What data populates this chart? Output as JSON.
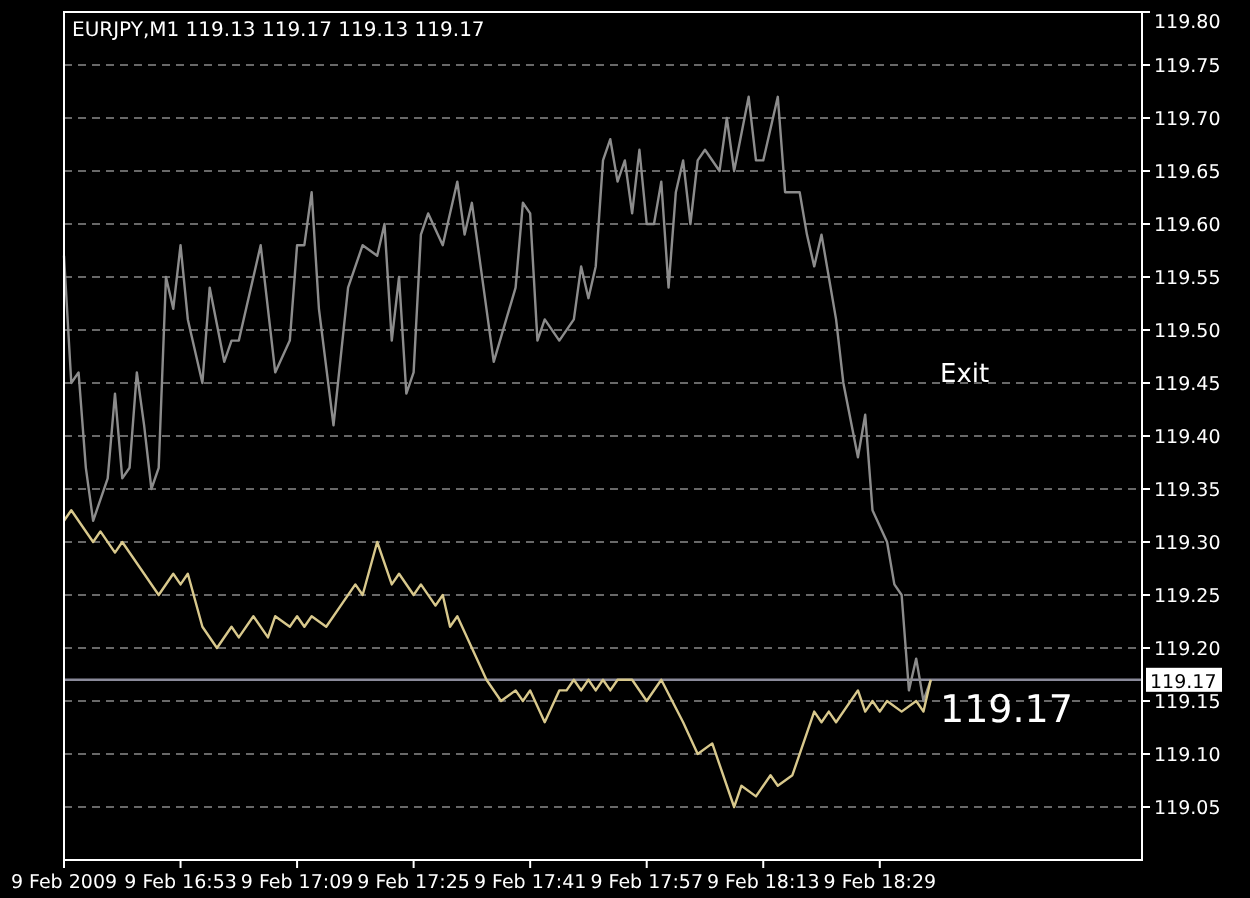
{
  "chart_data": {
    "type": "line",
    "title": "EURJPY,M1  119.13 119.17 119.13 119.17",
    "xlim": [
      "2009-02-09T16:37",
      "2009-02-09T19:05"
    ],
    "xticks": [
      {
        "value": "2009-02-09T16:37",
        "label": "9 Feb 2009"
      },
      {
        "value": "2009-02-09T16:53",
        "label": "9 Feb 16:53"
      },
      {
        "value": "2009-02-09T17:09",
        "label": "9 Feb 17:09"
      },
      {
        "value": "2009-02-09T17:25",
        "label": "9 Feb 17:25"
      },
      {
        "value": "2009-02-09T17:41",
        "label": "9 Feb 17:41"
      },
      {
        "value": "2009-02-09T17:57",
        "label": "9 Feb 17:57"
      },
      {
        "value": "2009-02-09T18:13",
        "label": "9 Feb 18:13"
      },
      {
        "value": "2009-02-09T18:29",
        "label": "9 Feb 18:29"
      }
    ],
    "ylim": [
      119.0,
      119.8
    ],
    "yticks": [
      119.05,
      {
        "value": 119.1,
        "label": "119.10"
      },
      119.15,
      {
        "value": 119.2,
        "label": "119.20"
      },
      119.25,
      {
        "value": 119.3,
        "label": "119.30"
      },
      119.35,
      {
        "value": 119.4,
        "label": "119.40"
      },
      119.45,
      {
        "value": 119.5,
        "label": "119.50"
      },
      119.55,
      {
        "value": 119.6,
        "label": "119.60"
      },
      119.65,
      {
        "value": 119.7,
        "label": "119.70"
      },
      119.75,
      {
        "value": 119.8,
        "label": "119.80"
      }
    ],
    "grid": "y",
    "line_style": "solid",
    "marker": "none",
    "ref_lines": [
      {
        "axis": "y",
        "value": 119.17,
        "label": "119.17",
        "color": "#8a8a9a",
        "line_style": "solid"
      }
    ],
    "annotations": [
      "Exit"
    ],
    "series": [
      {
        "color": "#8c8c8c",
        "x": [
          "2009-02-09T16:37",
          "2009-02-09T16:38",
          "2009-02-09T16:39",
          "2009-02-09T16:40",
          "2009-02-09T16:41",
          "2009-02-09T16:43",
          "2009-02-09T16:44",
          "2009-02-09T16:45",
          "2009-02-09T16:46",
          "2009-02-09T16:47",
          "2009-02-09T16:48",
          "2009-02-09T16:49",
          "2009-02-09T16:50",
          "2009-02-09T16:51",
          "2009-02-09T16:52",
          "2009-02-09T16:53",
          "2009-02-09T16:54",
          "2009-02-09T16:56",
          "2009-02-09T16:57",
          "2009-02-09T16:59",
          "2009-02-09T17:00",
          "2009-02-09T17:01",
          "2009-02-09T17:04",
          "2009-02-09T17:06",
          "2009-02-09T17:08",
          "2009-02-09T17:09",
          "2009-02-09T17:10",
          "2009-02-09T17:11",
          "2009-02-09T17:12",
          "2009-02-09T17:14",
          "2009-02-09T17:16",
          "2009-02-09T17:18",
          "2009-02-09T17:20",
          "2009-02-09T17:21",
          "2009-02-09T17:22",
          "2009-02-09T17:23",
          "2009-02-09T17:24",
          "2009-02-09T17:25",
          "2009-02-09T17:26",
          "2009-02-09T17:27",
          "2009-02-09T17:29",
          "2009-02-09T17:31",
          "2009-02-09T17:32",
          "2009-02-09T17:33",
          "2009-02-09T17:36",
          "2009-02-09T17:39",
          "2009-02-09T17:40",
          "2009-02-09T17:41",
          "2009-02-09T17:42",
          "2009-02-09T17:43",
          "2009-02-09T17:45",
          "2009-02-09T17:47",
          "2009-02-09T17:48",
          "2009-02-09T17:49",
          "2009-02-09T17:50",
          "2009-02-09T17:51",
          "2009-02-09T17:52",
          "2009-02-09T17:53",
          "2009-02-09T17:54",
          "2009-02-09T17:55",
          "2009-02-09T17:56",
          "2009-02-09T17:57",
          "2009-02-09T17:58",
          "2009-02-09T17:59",
          "2009-02-09T18:00",
          "2009-02-09T18:01",
          "2009-02-09T18:02",
          "2009-02-09T18:03",
          "2009-02-09T18:04",
          "2009-02-09T18:05",
          "2009-02-09T18:07",
          "2009-02-09T18:08",
          "2009-02-09T18:09",
          "2009-02-09T18:11",
          "2009-02-09T18:12",
          "2009-02-09T18:13",
          "2009-02-09T18:15",
          "2009-02-09T18:16",
          "2009-02-09T18:18",
          "2009-02-09T18:19",
          "2009-02-09T18:20",
          "2009-02-09T18:21",
          "2009-02-09T18:22",
          "2009-02-09T18:23",
          "2009-02-09T18:24",
          "2009-02-09T18:26",
          "2009-02-09T18:27",
          "2009-02-09T18:28",
          "2009-02-09T18:30",
          "2009-02-09T18:31",
          "2009-02-09T18:32",
          "2009-02-09T18:33",
          "2009-02-09T18:34",
          "2009-02-09T18:35",
          "2009-02-09T18:36"
        ],
        "values": [
          119.57,
          119.45,
          119.46,
          119.37,
          119.32,
          119.36,
          119.44,
          119.36,
          119.37,
          119.46,
          119.41,
          119.35,
          119.37,
          119.55,
          119.52,
          119.58,
          119.51,
          119.45,
          119.54,
          119.47,
          119.49,
          119.49,
          119.58,
          119.46,
          119.49,
          119.58,
          119.58,
          119.63,
          119.52,
          119.41,
          119.54,
          119.58,
          119.57,
          119.6,
          119.49,
          119.55,
          119.44,
          119.46,
          119.59,
          119.61,
          119.58,
          119.64,
          119.59,
          119.62,
          119.47,
          119.54,
          119.62,
          119.61,
          119.49,
          119.51,
          119.49,
          119.51,
          119.56,
          119.53,
          119.56,
          119.66,
          119.68,
          119.64,
          119.66,
          119.61,
          119.67,
          119.6,
          119.6,
          119.64,
          119.54,
          119.63,
          119.66,
          119.6,
          119.66,
          119.67,
          119.65,
          119.7,
          119.65,
          119.72,
          119.66,
          119.66,
          119.72,
          119.63,
          119.63,
          119.59,
          119.56,
          119.59,
          119.55,
          119.51,
          119.45,
          119.38,
          119.42,
          119.33,
          119.3,
          119.26,
          119.25,
          119.16,
          119.19,
          119.15,
          119.17
        ]
      },
      {
        "color": "#d8c88c",
        "x": [
          "2009-02-09T16:37",
          "2009-02-09T16:38",
          "2009-02-09T16:41",
          "2009-02-09T16:42",
          "2009-02-09T16:44",
          "2009-02-09T16:45",
          "2009-02-09T16:50",
          "2009-02-09T16:52",
          "2009-02-09T16:53",
          "2009-02-09T16:54",
          "2009-02-09T16:56",
          "2009-02-09T16:58",
          "2009-02-09T17:00",
          "2009-02-09T17:01",
          "2009-02-09T17:03",
          "2009-02-09T17:05",
          "2009-02-09T17:06",
          "2009-02-09T17:08",
          "2009-02-09T17:09",
          "2009-02-09T17:10",
          "2009-02-09T17:11",
          "2009-02-09T17:13",
          "2009-02-09T17:17",
          "2009-02-09T17:18",
          "2009-02-09T17:20",
          "2009-02-09T17:22",
          "2009-02-09T17:23",
          "2009-02-09T17:25",
          "2009-02-09T17:26",
          "2009-02-09T17:28",
          "2009-02-09T17:29",
          "2009-02-09T17:30",
          "2009-02-09T17:31",
          "2009-02-09T17:35",
          "2009-02-09T17:37",
          "2009-02-09T17:39",
          "2009-02-09T17:40",
          "2009-02-09T17:41",
          "2009-02-09T17:43",
          "2009-02-09T17:45",
          "2009-02-09T17:46",
          "2009-02-09T17:47",
          "2009-02-09T17:48",
          "2009-02-09T17:49",
          "2009-02-09T17:50",
          "2009-02-09T17:51",
          "2009-02-09T17:52",
          "2009-02-09T17:53",
          "2009-02-09T17:55",
          "2009-02-09T17:57",
          "2009-02-09T17:59",
          "2009-02-09T18:02",
          "2009-02-09T18:04",
          "2009-02-09T18:06",
          "2009-02-09T18:09",
          "2009-02-09T18:10",
          "2009-02-09T18:12",
          "2009-02-09T18:14",
          "2009-02-09T18:15",
          "2009-02-09T18:17",
          "2009-02-09T18:20",
          "2009-02-09T18:21",
          "2009-02-09T18:22",
          "2009-02-09T18:23",
          "2009-02-09T18:26",
          "2009-02-09T18:27",
          "2009-02-09T18:28",
          "2009-02-09T18:29",
          "2009-02-09T18:30",
          "2009-02-09T18:32",
          "2009-02-09T18:34",
          "2009-02-09T18:35",
          "2009-02-09T18:36"
        ],
        "values": [
          119.32,
          119.33,
          119.3,
          119.31,
          119.29,
          119.3,
          119.25,
          119.27,
          119.26,
          119.27,
          119.22,
          119.2,
          119.22,
          119.21,
          119.23,
          119.21,
          119.23,
          119.22,
          119.23,
          119.22,
          119.23,
          119.22,
          119.26,
          119.25,
          119.3,
          119.26,
          119.27,
          119.25,
          119.26,
          119.24,
          119.25,
          119.22,
          119.23,
          119.17,
          119.15,
          119.16,
          119.15,
          119.16,
          119.13,
          119.16,
          119.16,
          119.17,
          119.16,
          119.17,
          119.16,
          119.17,
          119.16,
          119.17,
          119.17,
          119.15,
          119.17,
          119.13,
          119.1,
          119.11,
          119.05,
          119.07,
          119.06,
          119.08,
          119.07,
          119.08,
          119.14,
          119.13,
          119.14,
          119.13,
          119.16,
          119.14,
          119.15,
          119.14,
          119.15,
          119.14,
          119.15,
          119.14,
          119.17
        ]
      }
    ]
  }
}
